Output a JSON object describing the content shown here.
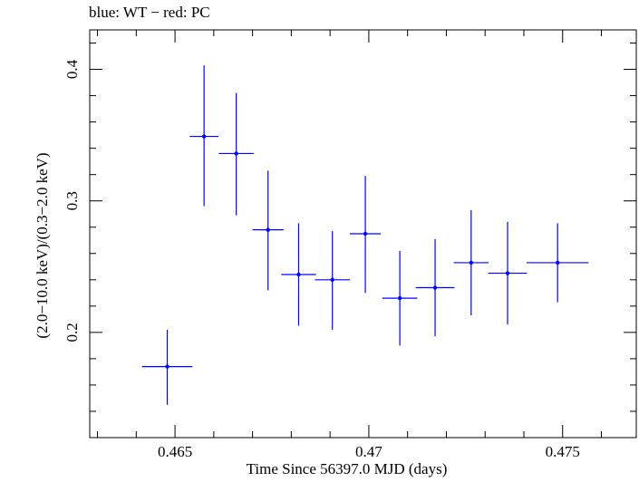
{
  "chart_data": {
    "type": "scatter",
    "title": "blue: WT − red: PC",
    "xlabel": "Time Since 56397.0 MJD (days)",
    "ylabel": "(2.0−10.0 keV)/(0.3−2.0 keV)",
    "xlim": [
      0.4628,
      0.4769
    ],
    "ylim": [
      0.12,
      0.43
    ],
    "xticks": [
      0.465,
      0.47,
      0.475
    ],
    "xtick_labels": [
      "0.465",
      "0.47",
      "0.475"
    ],
    "yticks": [
      0.2,
      0.3,
      0.4
    ],
    "ytick_labels": [
      "0.2",
      "0.3",
      "0.4"
    ],
    "grid": false,
    "series": [
      {
        "name": "WT",
        "color": "#0000ff",
        "points": [
          {
            "x": 0.4648,
            "xerr": 0.00065,
            "y": 0.174,
            "yerr_low": 0.029,
            "yerr_high": 0.028
          },
          {
            "x": 0.46575,
            "xerr": 0.00037,
            "y": 0.349,
            "yerr_low": 0.053,
            "yerr_high": 0.054
          },
          {
            "x": 0.46658,
            "xerr": 0.00045,
            "y": 0.336,
            "yerr_low": 0.047,
            "yerr_high": 0.046
          },
          {
            "x": 0.4674,
            "xerr": 0.0004,
            "y": 0.278,
            "yerr_low": 0.046,
            "yerr_high": 0.045
          },
          {
            "x": 0.46819,
            "xerr": 0.00045,
            "y": 0.244,
            "yerr_low": 0.039,
            "yerr_high": 0.039
          },
          {
            "x": 0.46906,
            "xerr": 0.00045,
            "y": 0.24,
            "yerr_low": 0.038,
            "yerr_high": 0.037
          },
          {
            "x": 0.46991,
            "xerr": 0.0004,
            "y": 0.275,
            "yerr_low": 0.045,
            "yerr_high": 0.044
          },
          {
            "x": 0.4708,
            "xerr": 0.00045,
            "y": 0.226,
            "yerr_low": 0.036,
            "yerr_high": 0.036
          },
          {
            "x": 0.47171,
            "xerr": 0.0005,
            "y": 0.234,
            "yerr_low": 0.037,
            "yerr_high": 0.037
          },
          {
            "x": 0.47264,
            "xerr": 0.00045,
            "y": 0.253,
            "yerr_low": 0.04,
            "yerr_high": 0.04
          },
          {
            "x": 0.47358,
            "xerr": 0.0005,
            "y": 0.245,
            "yerr_low": 0.039,
            "yerr_high": 0.039
          },
          {
            "x": 0.47487,
            "xerr": 0.0008,
            "y": 0.253,
            "yerr_low": 0.03,
            "yerr_high": 0.03
          }
        ]
      }
    ]
  }
}
